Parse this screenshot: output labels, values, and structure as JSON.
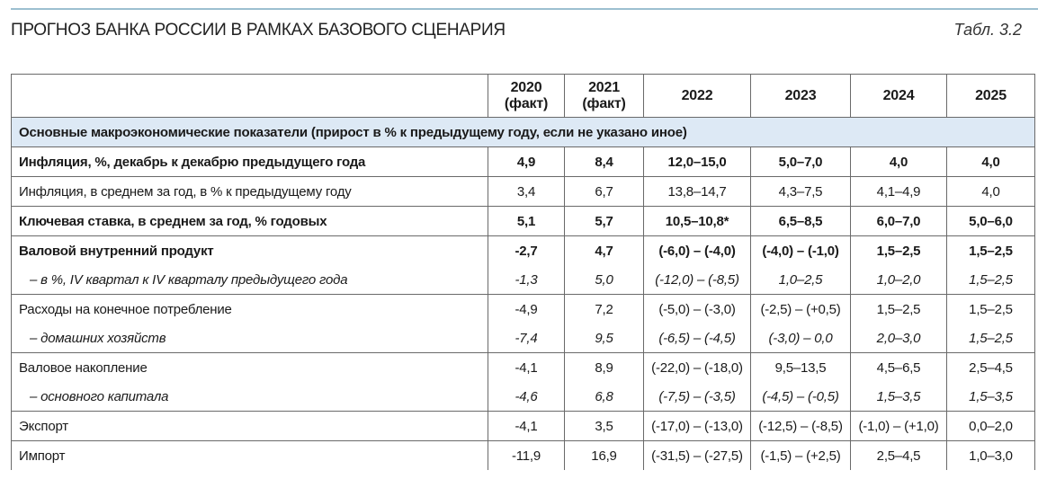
{
  "header": {
    "title": "ПРОГНОЗ БАНКА РОССИИ В РАМКАХ БАЗОВОГО СЦЕНАРИЯ",
    "table_number": "Табл. 3.2"
  },
  "columns": [
    {
      "year": "2020",
      "note": "(факт)"
    },
    {
      "year": "2021",
      "note": "(факт)"
    },
    {
      "year": "2022",
      "note": ""
    },
    {
      "year": "2023",
      "note": ""
    },
    {
      "year": "2024",
      "note": ""
    },
    {
      "year": "2025",
      "note": ""
    }
  ],
  "section": "Основные макроэкономические показатели (прирост в % к предыдущему году, если не указано иное)",
  "rows": [
    {
      "label": "Инфляция, %, декабрь к декабрю предыдущего года",
      "style": "bold",
      "values": [
        "4,9",
        "8,4",
        "12,0–15,0",
        "5,0–7,0",
        "4,0",
        "4,0"
      ]
    },
    {
      "label": "Инфляция, в среднем за год, в % к предыдущему году",
      "style": "normal",
      "values": [
        "3,4",
        "6,7",
        "13,8–14,7",
        "4,3–7,5",
        "4,1–4,9",
        "4,0"
      ]
    },
    {
      "label": "Ключевая ставка, в среднем за год, % годовых",
      "style": "bold",
      "values": [
        "5,1",
        "5,7",
        "10,5–10,8*",
        "6,5–8,5",
        "6,0–7,0",
        "5,0–6,0"
      ]
    },
    {
      "label": "Валовой внутренний продукт",
      "style": "bold",
      "values": [
        "-2,7",
        "4,7",
        "(-6,0) – (-4,0)",
        "(-4,0) – (-1,0)",
        "1,5–2,5",
        "1,5–2,5"
      ]
    },
    {
      "label": "– в %, IV квартал к IV кварталу предыдущего года",
      "style": "sub",
      "values": [
        "-1,3",
        "5,0",
        "(-12,0) – (-8,5)",
        "1,0–2,5",
        "1,0–2,0",
        "1,5–2,5"
      ]
    },
    {
      "label": "Расходы на конечное потребление",
      "style": "normal",
      "values": [
        "-4,9",
        "7,2",
        "(-5,0) – (-3,0)",
        "(-2,5) – (+0,5)",
        "1,5–2,5",
        "1,5–2,5"
      ]
    },
    {
      "label": "– домашних хозяйств",
      "style": "sub",
      "values": [
        "-7,4",
        "9,5",
        "(-6,5) – (-4,5)",
        "(-3,0) – 0,0",
        "2,0–3,0",
        "1,5–2,5"
      ]
    },
    {
      "label": "Валовое накопление",
      "style": "normal",
      "values": [
        "-4,1",
        "8,9",
        "(-22,0) – (-18,0)",
        "9,5–13,5",
        "4,5–6,5",
        "2,5–4,5"
      ]
    },
    {
      "label": "– основного капитала",
      "style": "sub",
      "values": [
        "-4,6",
        "6,8",
        "(-7,5) – (-3,5)",
        "(-4,5) – (-0,5)",
        "1,5–3,5",
        "1,5–3,5"
      ]
    },
    {
      "label": "Экспорт",
      "style": "normal",
      "values": [
        "-4,1",
        "3,5",
        "(-17,0) – (-13,0)",
        "(-12,5) – (-8,5)",
        "(-1,0) – (+1,0)",
        "0,0–2,0"
      ]
    },
    {
      "label": "Импорт",
      "style": "normal",
      "values": [
        "-11,9",
        "16,9",
        "(-31,5) – (-27,5)",
        "(-1,5) – (+2,5)",
        "2,5–4,5",
        "1,0–3,0"
      ]
    }
  ],
  "colors": {
    "section_bg": "#dde9f5",
    "top_rule": "#9cbfd0",
    "border": "#6a6a6a"
  }
}
